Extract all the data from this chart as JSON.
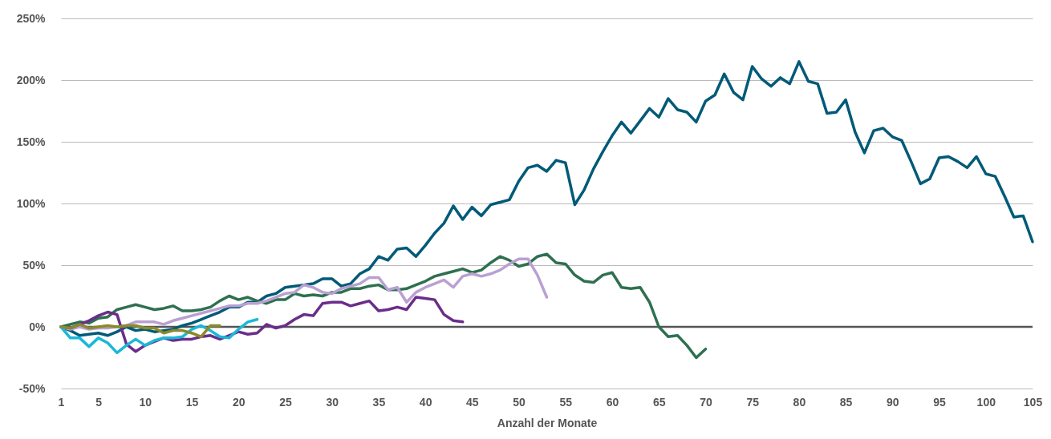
{
  "chart_data": {
    "type": "line",
    "xlabel": "Anzahl der Monate",
    "xlim": [
      1,
      105
    ],
    "xticks": [
      1,
      5,
      10,
      15,
      20,
      25,
      30,
      35,
      40,
      45,
      50,
      55,
      60,
      65,
      70,
      75,
      80,
      85,
      90,
      95,
      100,
      105
    ],
    "ylim": [
      -50,
      250
    ],
    "yticks": [
      {
        "value": -50,
        "label": "-50%"
      },
      {
        "value": 0,
        "label": "0%"
      },
      {
        "value": 50,
        "label": "50%"
      },
      {
        "value": 100,
        "label": "100%"
      },
      {
        "value": 150,
        "label": "150%"
      },
      {
        "value": 200,
        "label": "200%"
      },
      {
        "value": 250,
        "label": "250%"
      }
    ],
    "grid": "y",
    "legend": false,
    "marker": "none",
    "line_style": "solid",
    "ref_lines": [
      {
        "axis": "y",
        "value": 0,
        "label": null,
        "color": "#555555"
      }
    ],
    "series": [
      {
        "color": "#005a78",
        "x": [
          1,
          2,
          3,
          4,
          5,
          6,
          7,
          8,
          9,
          10,
          11,
          12,
          13,
          14,
          15,
          16,
          17,
          18,
          19,
          20,
          21,
          22,
          23,
          24,
          25,
          26,
          27,
          28,
          29,
          30,
          31,
          32,
          33,
          34,
          35,
          36,
          37,
          38,
          39,
          40,
          41,
          42,
          43,
          44,
          45,
          46,
          47,
          48,
          49,
          50,
          51,
          52,
          53,
          54,
          55,
          56,
          57,
          58,
          59,
          60,
          61,
          62,
          63,
          64,
          65,
          66,
          67,
          68,
          69,
          70,
          71,
          72,
          73,
          74,
          75,
          76,
          77,
          78,
          79,
          80,
          81,
          82,
          83,
          84,
          85,
          86,
          87,
          88,
          89,
          90,
          91,
          92,
          93,
          94,
          95,
          96,
          97,
          98,
          99,
          100,
          101,
          102,
          103,
          104,
          105
        ],
        "values": [
          0,
          -3,
          -7,
          -6,
          -5,
          -7,
          -4,
          0,
          -3,
          -2,
          -4,
          -3,
          -2,
          1,
          3,
          6,
          9,
          12,
          16,
          16,
          20,
          20,
          25,
          27,
          32,
          33,
          34,
          35,
          39,
          39,
          33,
          35,
          43,
          47,
          57,
          54,
          63,
          64,
          57,
          66,
          76,
          84,
          98,
          87,
          97,
          90,
          99,
          101,
          103,
          118,
          129,
          131,
          126,
          135,
          133,
          99,
          111,
          128,
          142,
          155,
          166,
          157,
          167,
          177,
          170,
          185,
          176,
          174,
          166,
          183,
          188,
          205,
          190,
          184,
          211,
          201,
          195,
          202,
          197,
          215,
          199,
          197,
          173,
          174,
          184,
          158,
          141,
          159,
          161,
          154,
          151,
          134,
          116,
          120,
          137,
          138,
          134,
          129,
          138,
          124,
          122,
          106,
          89,
          90,
          69
        ]
      },
      {
        "color": "#2e7050",
        "x": [
          1,
          2,
          3,
          4,
          5,
          6,
          7,
          8,
          9,
          10,
          11,
          12,
          13,
          14,
          15,
          16,
          17,
          18,
          19,
          20,
          21,
          22,
          23,
          24,
          25,
          26,
          27,
          28,
          29,
          30,
          31,
          32,
          33,
          34,
          35,
          36,
          37,
          38,
          39,
          40,
          41,
          42,
          43,
          44,
          45,
          46,
          47,
          48,
          49,
          50,
          51,
          52,
          53,
          54,
          55,
          56,
          57,
          58,
          59,
          60,
          61,
          62,
          63,
          64,
          65,
          66,
          67,
          68,
          69,
          70
        ],
        "values": [
          0,
          2,
          4,
          3,
          7,
          8,
          14,
          16,
          18,
          16,
          14,
          15,
          17,
          13,
          13,
          14,
          16,
          21,
          25,
          22,
          24,
          21,
          19,
          22,
          22,
          27,
          25,
          26,
          25,
          28,
          28,
          31,
          31,
          33,
          34,
          30,
          30,
          31,
          34,
          37,
          41,
          43,
          45,
          47,
          44,
          46,
          52,
          57,
          54,
          49,
          51,
          57,
          59,
          52,
          51,
          42,
          37,
          36,
          42,
          44,
          32,
          31,
          32,
          20,
          0,
          -8,
          -7,
          -15,
          -25,
          -18
        ]
      },
      {
        "color": "#b9a0d2",
        "x": [
          1,
          2,
          3,
          4,
          5,
          6,
          7,
          8,
          9,
          10,
          11,
          12,
          13,
          14,
          15,
          16,
          17,
          18,
          19,
          20,
          21,
          22,
          23,
          24,
          25,
          26,
          27,
          28,
          29,
          30,
          31,
          32,
          33,
          34,
          35,
          36,
          37,
          38,
          39,
          40,
          41,
          42,
          43,
          44,
          45,
          46,
          47,
          48,
          49,
          50,
          51,
          52,
          53
        ],
        "values": [
          0,
          -2,
          0,
          -2,
          -1,
          -1,
          0,
          1,
          4,
          4,
          4,
          2,
          5,
          7,
          9,
          11,
          13,
          15,
          17,
          17,
          19,
          19,
          21,
          24,
          27,
          28,
          34,
          32,
          28,
          27,
          31,
          33,
          35,
          40,
          40,
          30,
          32,
          20,
          28,
          32,
          35,
          38,
          32,
          41,
          43,
          41,
          43,
          46,
          51,
          55,
          55,
          42,
          24
        ]
      },
      {
        "color": "#6a2d8a",
        "x": [
          1,
          2,
          3,
          4,
          5,
          6,
          7,
          8,
          9,
          10,
          11,
          12,
          13,
          14,
          15,
          16,
          17,
          18,
          19,
          20,
          21,
          22,
          23,
          24,
          25,
          26,
          27,
          28,
          29,
          30,
          31,
          32,
          33,
          34,
          35,
          36,
          37,
          38,
          39,
          40,
          41,
          42,
          43,
          44
        ],
        "values": [
          0,
          -1,
          2,
          5,
          9,
          12,
          10,
          -14,
          -20,
          -15,
          -12,
          -9,
          -11,
          -10,
          -10,
          -8,
          -7,
          -10,
          -7,
          -4,
          -6,
          -5,
          2,
          -1,
          1,
          6,
          10,
          9,
          19,
          20,
          20,
          17,
          19,
          21,
          13,
          14,
          16,
          14,
          24,
          23,
          22,
          10,
          5,
          4
        ]
      },
      {
        "color": "#1ab8d8",
        "x": [
          1,
          2,
          3,
          4,
          5,
          6,
          7,
          8,
          9,
          10,
          11,
          12,
          13,
          14,
          15,
          16,
          17,
          18,
          19,
          20,
          21,
          22
        ],
        "values": [
          0,
          -9,
          -9,
          -16,
          -9,
          -13,
          -21,
          -15,
          -10,
          -15,
          -11,
          -9,
          -9,
          -8,
          -2,
          1,
          -3,
          -8,
          -9,
          -2,
          4,
          6
        ]
      },
      {
        "color": "#8a8a2a",
        "x": [
          1,
          2,
          3,
          4,
          5,
          6,
          7,
          8,
          9,
          10,
          11,
          12,
          13,
          14,
          15,
          16,
          17,
          18
        ],
        "values": [
          0,
          -1,
          2,
          -1,
          0,
          1,
          0,
          1,
          1,
          -1,
          -1,
          -5,
          -3,
          -3,
          -5,
          -8,
          1,
          1
        ]
      }
    ]
  }
}
